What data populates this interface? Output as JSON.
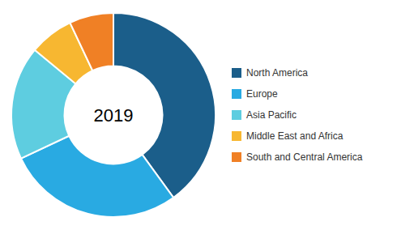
{
  "chart_data": {
    "type": "donut",
    "categories": [
      "North America",
      "Europe",
      "Asia Pacific",
      "Middle East and Africa",
      "South and Central America"
    ],
    "values": [
      40,
      28,
      18,
      7,
      7
    ],
    "colors": [
      "#1b5e8a",
      "#29aae2",
      "#5ecde0",
      "#f7b731",
      "#f08025"
    ],
    "annotations": [
      "2019"
    ],
    "legend": "right"
  }
}
